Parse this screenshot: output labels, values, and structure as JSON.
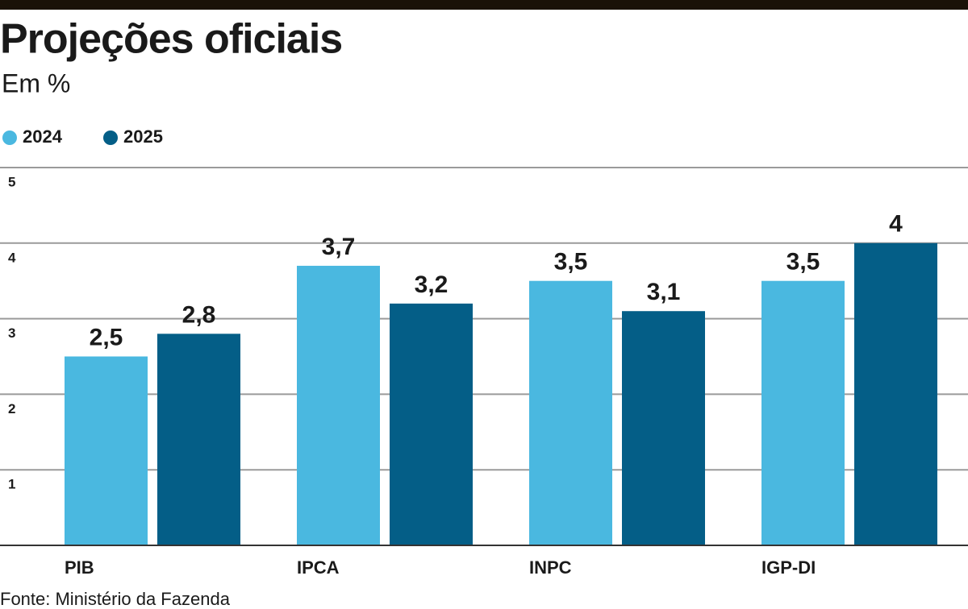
{
  "chart_data": {
    "type": "bar",
    "title": "Projeções oficiais",
    "subtitle": "Em %",
    "categories": [
      "PIB",
      "IPCA",
      "INPC",
      "IGP-DI"
    ],
    "series": [
      {
        "name": "2024",
        "color": "#4ab8e0",
        "values": [
          2.5,
          3.7,
          3.5,
          3.5
        ],
        "value_labels": [
          "2,5",
          "3,7",
          "3,5",
          "3,5"
        ]
      },
      {
        "name": "2025",
        "color": "#045e87",
        "values": [
          2.8,
          3.2,
          3.1,
          4
        ],
        "value_labels": [
          "2,8",
          "3,2",
          "3,1",
          "4"
        ]
      }
    ],
    "ylim": [
      0,
      5
    ],
    "yticks": [
      1,
      2,
      3,
      4,
      5
    ],
    "grid": true,
    "source": "Fonte: Ministério da Fazenda"
  }
}
